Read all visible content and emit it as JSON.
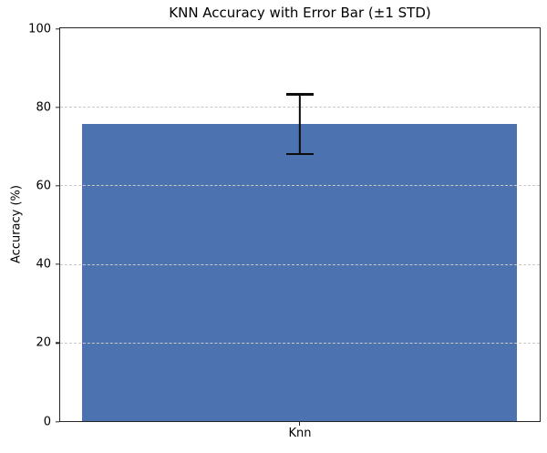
{
  "chart_data": {
    "type": "bar",
    "title": "KNN Accuracy with Error Bar (±1 STD)",
    "categories": [
      "Knn"
    ],
    "values": [
      75.6
    ],
    "error_std": [
      7.7
    ],
    "xlabel": "",
    "ylabel": "Accuracy (%)",
    "ylim": [
      0,
      100
    ],
    "yticks": [
      0,
      20,
      40,
      60,
      80,
      100
    ],
    "grid": "horizontal-dashed",
    "legend": "none",
    "bar_color": "#4c72b0",
    "error_color": "#0d0d0d",
    "gridline_color": "#c9c9c9",
    "spine_color": "#262626",
    "background_color": "#ffffff"
  }
}
